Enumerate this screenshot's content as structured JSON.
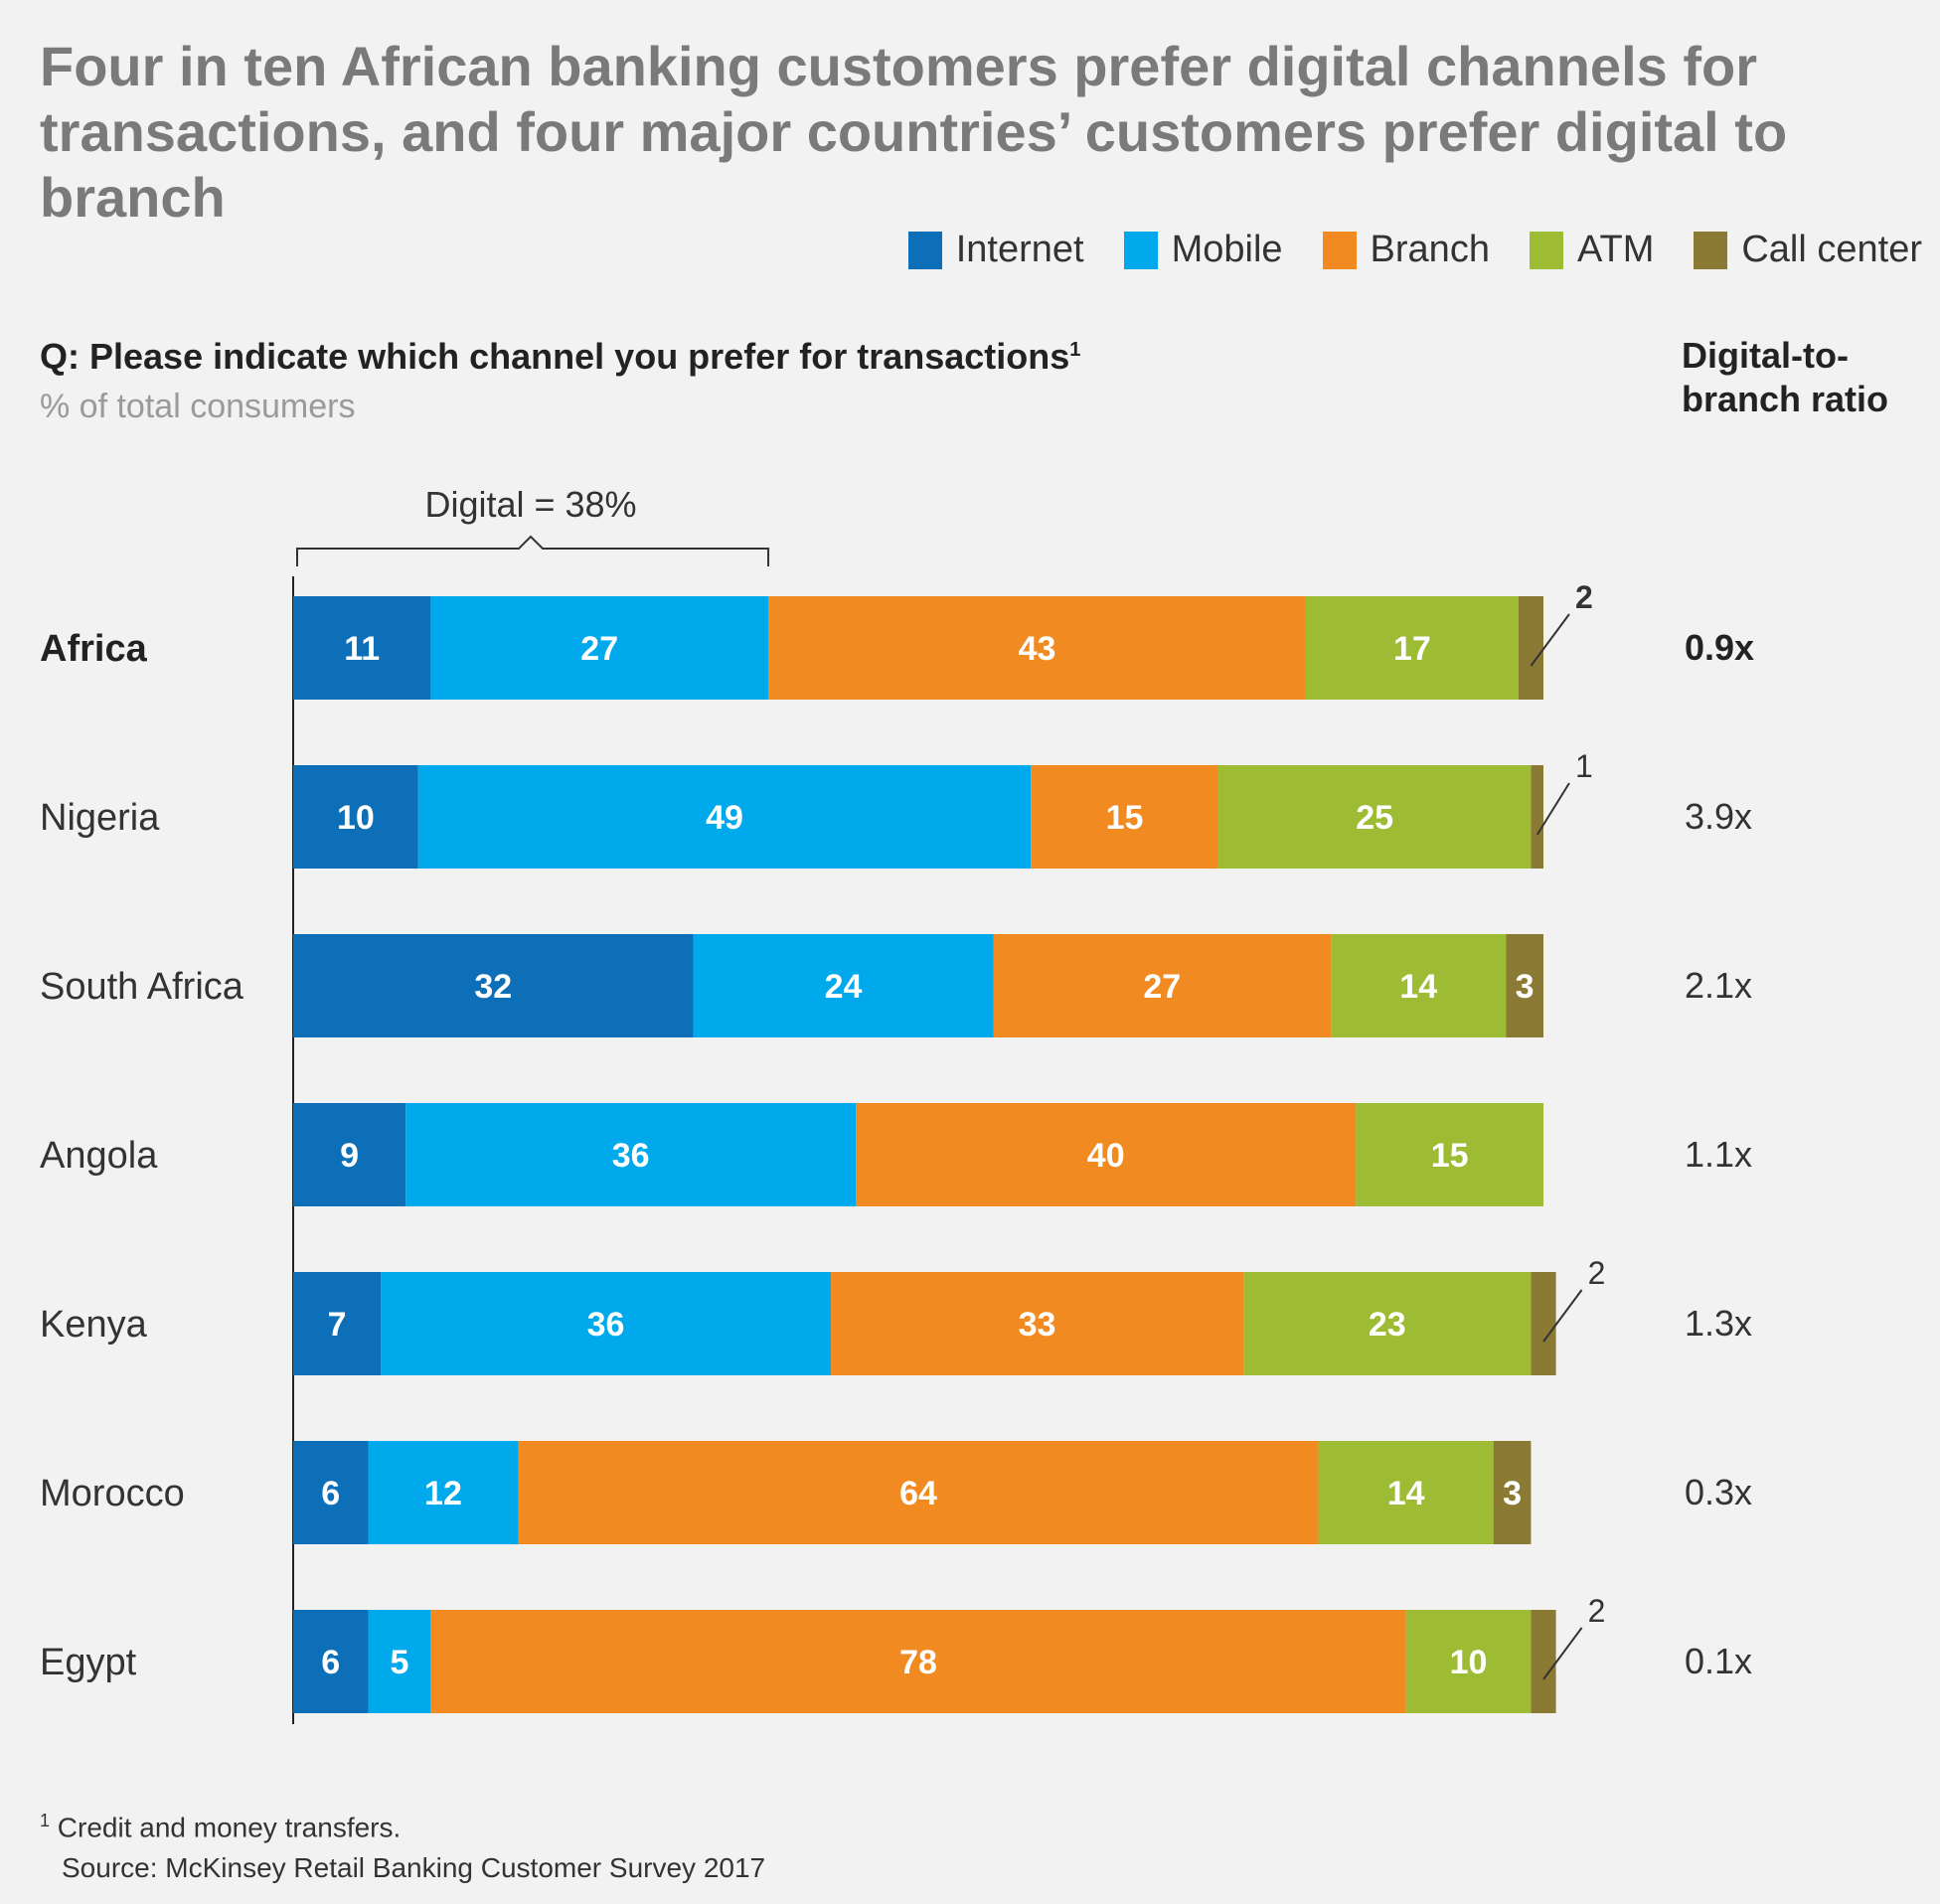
{
  "title": "Four in ten African banking customers prefer digital channels for transactions, and four major countries’ customers prefer digital to branch",
  "question": "Q: Please indicate which channel you prefer for transactions",
  "question_footnote_mark": "1",
  "units": "% of total consumers",
  "ratio_header": "Digital-to-branch ratio",
  "footnote": {
    "mark": "1",
    "text": "Credit and money transfers."
  },
  "source": "Source: McKinsey Retail Banking Customer Survey 2017",
  "bracket_label": "Digital = 38%",
  "legend": [
    {
      "name": "Internet",
      "color": "#0d6fb8"
    },
    {
      "name": "Mobile",
      "color": "#00a9ec"
    },
    {
      "name": "Branch",
      "color": "#f28a22"
    },
    {
      "name": "ATM",
      "color": "#9dbb33"
    },
    {
      "name": "Call center",
      "color": "#8a7a34"
    }
  ],
  "chart_data": {
    "type": "bar",
    "orientation": "horizontal",
    "stacked": true,
    "categories": [
      "Africa",
      "Nigeria",
      "South Africa",
      "Angola",
      "Kenya",
      "Morocco",
      "Egypt"
    ],
    "series": [
      {
        "name": "Internet",
        "color": "#0d6fb8",
        "values": [
          11,
          10,
          32,
          9,
          7,
          6,
          6
        ]
      },
      {
        "name": "Mobile",
        "color": "#00a9ec",
        "values": [
          27,
          49,
          24,
          36,
          36,
          12,
          5
        ]
      },
      {
        "name": "Branch",
        "color": "#f28a22",
        "values": [
          43,
          15,
          27,
          40,
          33,
          64,
          78
        ]
      },
      {
        "name": "ATM",
        "color": "#9dbb33",
        "values": [
          17,
          25,
          14,
          15,
          23,
          14,
          10
        ]
      },
      {
        "name": "Call center",
        "color": "#8a7a34",
        "values": [
          2,
          1,
          3,
          null,
          2,
          3,
          2
        ]
      }
    ],
    "digital_to_branch_ratio": [
      "0.9x",
      "3.9x",
      "2.1x",
      "1.1x",
      "1.3x",
      "0.3x",
      "0.1x"
    ],
    "annotation": "Digital = 38%",
    "xlim": [
      0,
      100
    ],
    "grid": false,
    "legend_position": "top-right"
  }
}
